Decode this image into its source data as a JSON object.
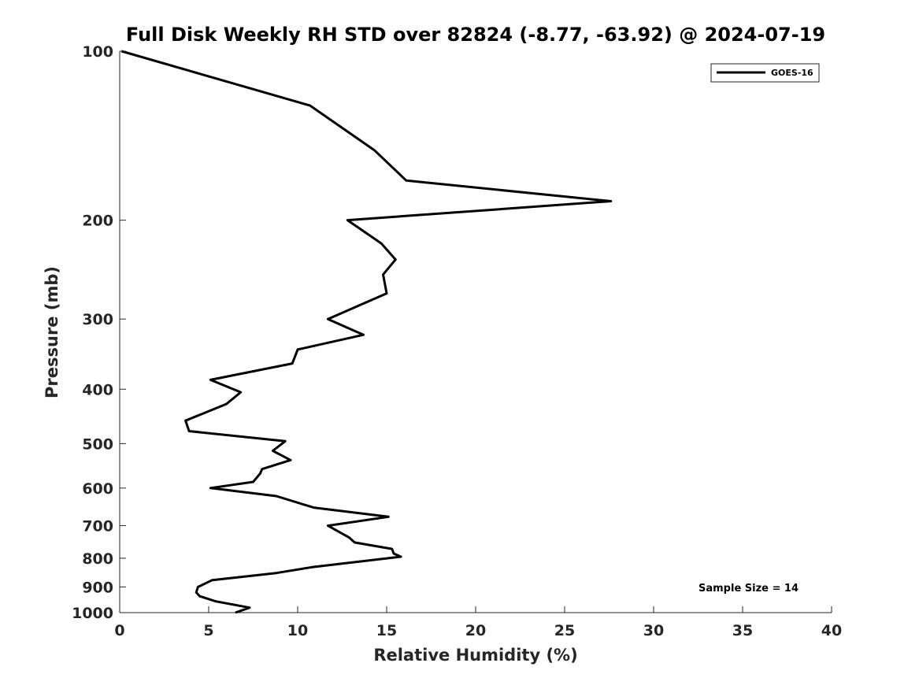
{
  "chart_data": {
    "type": "line",
    "title": "Full Disk Weekly RH STD over 82824 (-8.77, -63.92) @ 2024-07-19",
    "xlabel": "Relative Humidity (%)",
    "ylabel": "Pressure (mb)",
    "xlim": [
      0,
      40
    ],
    "ylim": [
      100,
      1000
    ],
    "yscale": "log",
    "y_reversed": true,
    "grid": false,
    "legend_position": "top-right",
    "xticks": [
      "0",
      "5",
      "10",
      "15",
      "20",
      "25",
      "30",
      "35",
      "40"
    ],
    "yticks": [
      "100",
      "200",
      "300",
      "400",
      "500",
      "600",
      "700",
      "800",
      "900",
      "1000"
    ],
    "annotation": "Sample Size = 14",
    "color": "#000000",
    "series": [
      {
        "name": "GOES-16",
        "points": [
          [
            0.1,
            100
          ],
          [
            10.7,
            125
          ],
          [
            14.3,
            150
          ],
          [
            16.1,
            170
          ],
          [
            27.6,
            185
          ],
          [
            12.8,
            200
          ],
          [
            14.7,
            220
          ],
          [
            15.5,
            235
          ],
          [
            14.8,
            250
          ],
          [
            15.0,
            270
          ],
          [
            11.7,
            300
          ],
          [
            13.7,
            320
          ],
          [
            10.0,
            340
          ],
          [
            9.7,
            360
          ],
          [
            5.1,
            385
          ],
          [
            6.8,
            405
          ],
          [
            6.0,
            425
          ],
          [
            3.7,
            455
          ],
          [
            3.9,
            475
          ],
          [
            9.3,
            495
          ],
          [
            8.6,
            515
          ],
          [
            9.6,
            535
          ],
          [
            8.0,
            555
          ],
          [
            7.9,
            565
          ],
          [
            7.5,
            585
          ],
          [
            5.1,
            600
          ],
          [
            8.8,
            620
          ],
          [
            10.9,
            650
          ],
          [
            15.1,
            675
          ],
          [
            11.7,
            700
          ],
          [
            12.9,
            735
          ],
          [
            13.2,
            750
          ],
          [
            15.3,
            770
          ],
          [
            15.4,
            785
          ],
          [
            15.8,
            795
          ],
          [
            10.8,
            830
          ],
          [
            8.8,
            850
          ],
          [
            5.2,
            875
          ],
          [
            4.4,
            900
          ],
          [
            4.3,
            920
          ],
          [
            4.5,
            935
          ],
          [
            5.4,
            955
          ],
          [
            7.3,
            980
          ],
          [
            6.5,
            1000
          ]
        ]
      }
    ]
  }
}
